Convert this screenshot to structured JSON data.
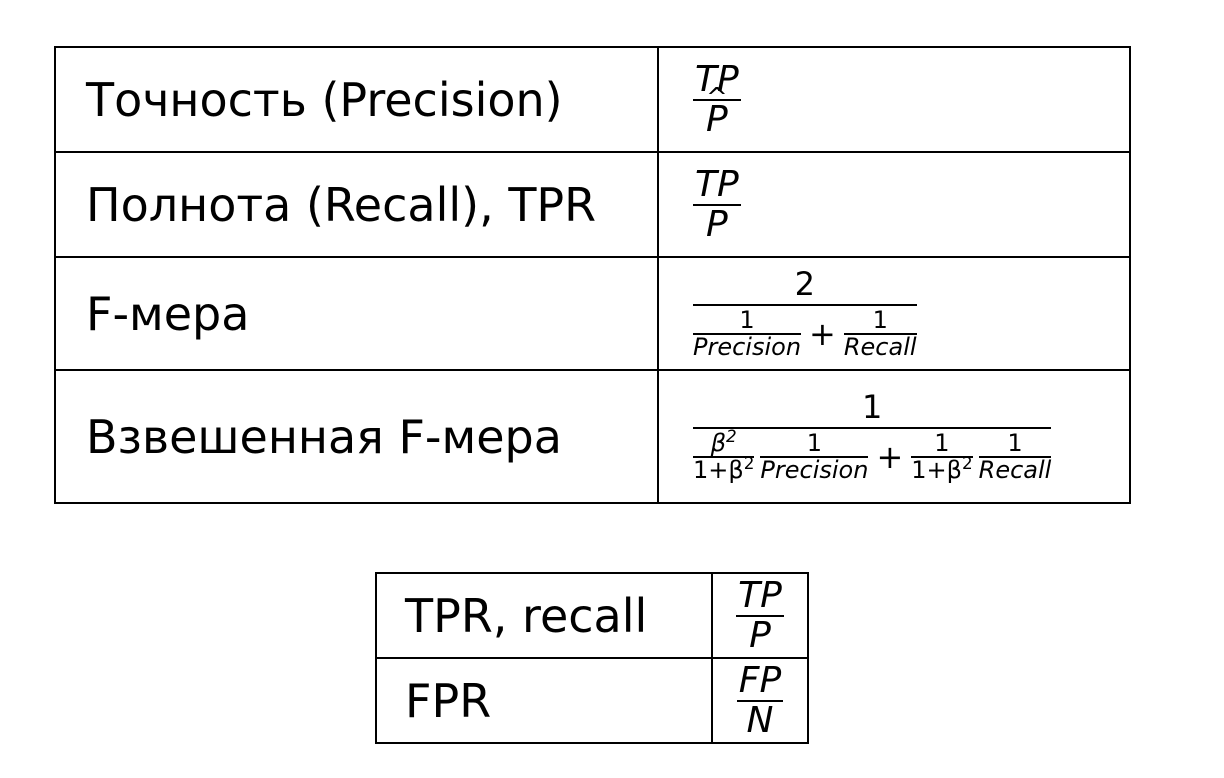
{
  "metrics_table": {
    "rows": [
      {
        "name": "Точность (Precision)",
        "num": "TP",
        "den": "P",
        "den_hat": "^"
      },
      {
        "name": "Полнота (Recall), TPR",
        "num": "TP",
        "den": "P"
      },
      {
        "name": "F-мера",
        "num": "2",
        "d1_num": "1",
        "d1_den": "Precision",
        "op": "+",
        "d2_num": "1",
        "d2_den": "Recall"
      },
      {
        "name": "Взвешенная F-мера",
        "num": "1",
        "w1_num": "β",
        "w1_num_exp": "2",
        "w1_den": "1+β",
        "w1_den_exp": "2",
        "p_num": "1",
        "p_den": "Precision",
        "op": "+",
        "w2_num": "1",
        "w2_den": "1+β",
        "w2_den_exp": "2",
        "r_num": "1",
        "r_den": "Recall"
      }
    ]
  },
  "rates_table": {
    "rows": [
      {
        "name": "TPR, recall",
        "num": "TP",
        "den": "P"
      },
      {
        "name": "FPR",
        "num": "FP",
        "den": "N"
      }
    ]
  }
}
